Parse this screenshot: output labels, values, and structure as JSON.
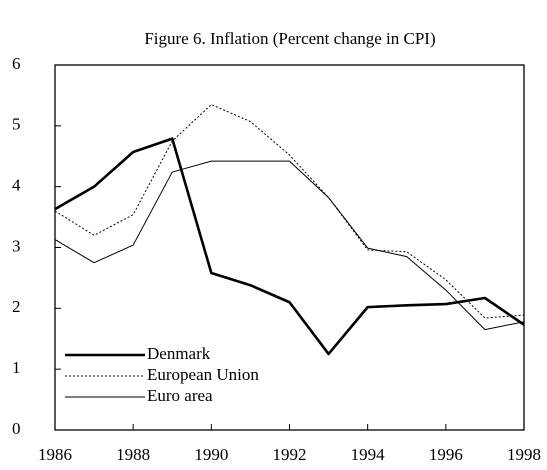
{
  "chart_data": {
    "type": "line",
    "title": "Figure 6. Inflation (Percent change in CPI)",
    "x": [
      1986,
      1987,
      1988,
      1989,
      1990,
      1991,
      1992,
      1993,
      1994,
      1995,
      1996,
      1997,
      1998
    ],
    "series": [
      {
        "name": "Denmark",
        "color": "#000000",
        "line_width": 2.6,
        "line_style": "solid",
        "values": [
          3.63,
          4.0,
          4.57,
          4.79,
          2.58,
          2.38,
          2.1,
          1.25,
          2.02,
          2.05,
          2.07,
          2.17,
          1.73
        ]
      },
      {
        "name": "European Union",
        "color": "#000000",
        "line_width": 1,
        "line_style": "dotted",
        "values": [
          3.6,
          3.2,
          3.54,
          4.75,
          5.35,
          5.07,
          4.52,
          3.82,
          2.96,
          2.93,
          2.47,
          1.84,
          1.89
        ]
      },
      {
        "name": "Euro area",
        "color": "#000000",
        "line_width": 1,
        "line_style": "solid",
        "values": [
          3.13,
          2.75,
          3.04,
          4.24,
          4.42,
          4.42,
          4.42,
          3.82,
          2.99,
          2.85,
          2.3,
          1.65,
          1.78
        ]
      }
    ],
    "xlim": [
      1986,
      1998
    ],
    "xticks": [
      1986,
      1988,
      1990,
      1992,
      1994,
      1996,
      1998
    ],
    "ylim": [
      0,
      6
    ],
    "yticks": [
      0,
      1,
      2,
      3,
      4,
      5,
      6
    ],
    "grid": false,
    "legend": "lower left"
  }
}
